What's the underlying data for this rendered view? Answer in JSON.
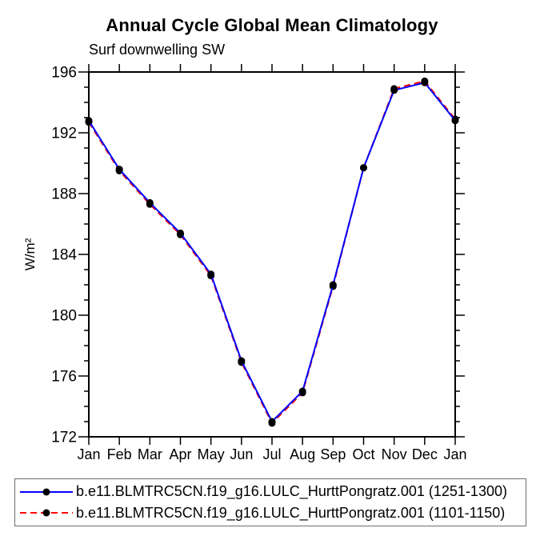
{
  "page": {
    "background": "#ffffff",
    "text_color": "#000000"
  },
  "chart_data": {
    "type": "line",
    "title": "Annual Cycle Global Mean Climatology",
    "subtitle": "Surf downwelling SW",
    "xlabel": "",
    "ylabel": "W/m²",
    "categories": [
      "Jan",
      "Feb",
      "Mar",
      "Apr",
      "May",
      "Jun",
      "Jul",
      "Aug",
      "Sep",
      "Oct",
      "Nov",
      "Dec",
      "Jan"
    ],
    "ylim": [
      172,
      196
    ],
    "yticks": [
      172,
      176,
      180,
      184,
      188,
      192,
      196
    ],
    "y_minor_tick_step": 1,
    "grid": false,
    "legend_position": "bottom-box",
    "axis_color": "#000000",
    "series": [
      {
        "name": "b.e11.BLMTRC5CN.f19_g16.LULC_HurttPongratz.001 (1251-1300)",
        "color": "#0000ff",
        "line_style": "solid",
        "marker": "filled-circle",
        "marker_color": "#000000",
        "values": [
          192.8,
          189.6,
          187.4,
          185.4,
          182.7,
          177.0,
          173.0,
          175.0,
          182.0,
          189.7,
          194.8,
          195.3,
          192.8
        ]
      },
      {
        "name": "b.e11.BLMTRC5CN.f19_g16.LULC_HurttPongratz.001 (1101-1150)",
        "color": "#ff0000",
        "line_style": "dashed",
        "marker": "filled-circle",
        "marker_color": "#000000",
        "values": [
          192.7,
          189.5,
          187.3,
          185.3,
          182.6,
          176.9,
          172.9,
          174.9,
          181.9,
          189.7,
          194.9,
          195.4,
          192.9
        ]
      }
    ]
  }
}
